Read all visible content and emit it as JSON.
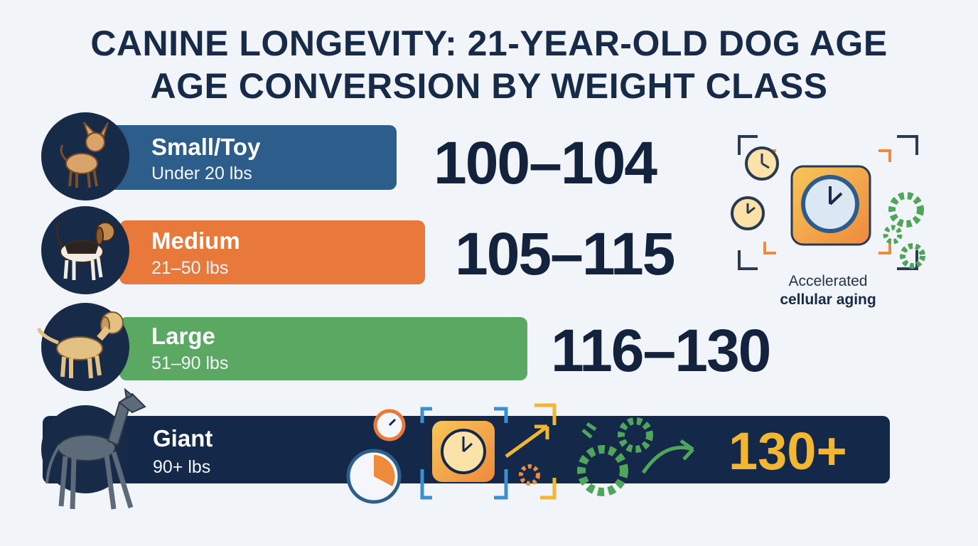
{
  "header": {
    "title_lines": [
      "CANINE LONGEVITY: 21-YEAR-OLD DOG AGE",
      "AGE CONVERSION BY WEIGHT CLASS"
    ]
  },
  "rows": [
    {
      "name": "Small/Toy",
      "weight": "Under 20 lbs",
      "human_age": "100–104"
    },
    {
      "name": "Medium",
      "weight": "21–50 lbs",
      "human_age": "105–115"
    },
    {
      "name": "Large",
      "weight": "51–90 lbs",
      "human_age": "116–130"
    },
    {
      "name": "Giant",
      "weight": "90+ lbs",
      "human_age": "130+"
    }
  ],
  "icon_caption": [
    "Accelerated",
    "cellular aging"
  ]
}
